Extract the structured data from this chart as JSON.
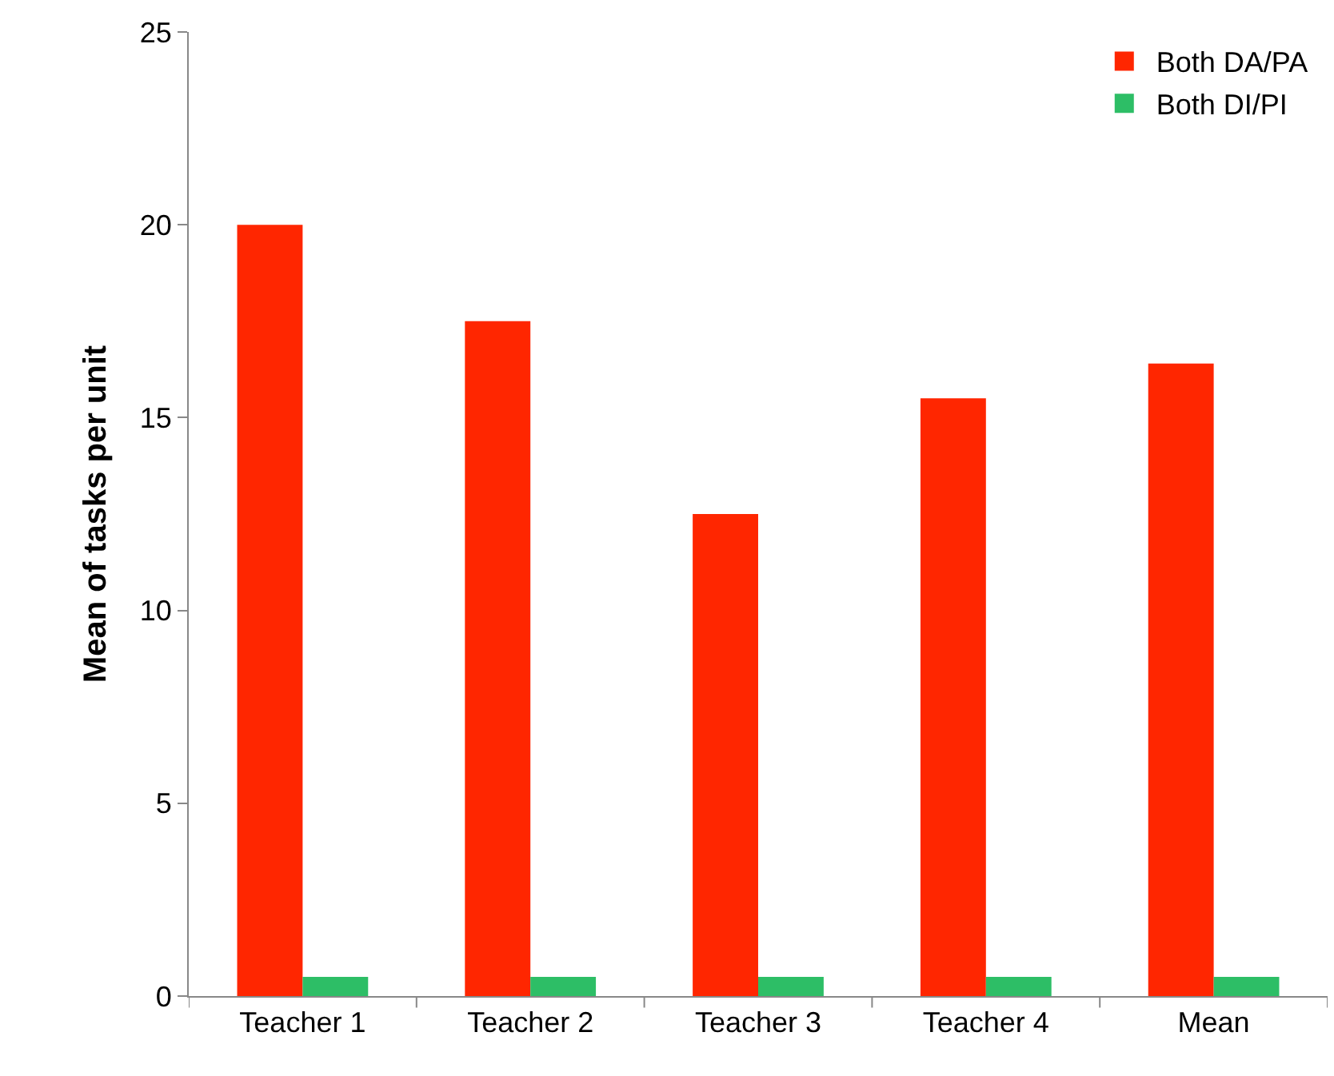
{
  "chart_data": {
    "type": "bar",
    "ylabel": "Mean of tasks per unit",
    "categories": [
      "Teacher 1",
      "Teacher 2",
      "Teacher 3",
      "Teacher 4",
      "Mean"
    ],
    "series": [
      {
        "name": "Both DA/PA",
        "color": "#ff2600",
        "values": [
          20,
          17.5,
          12.5,
          15.5,
          16.4
        ]
      },
      {
        "name": "Both DI/PI",
        "color": "#2dbe66",
        "values": [
          0.5,
          0.5,
          0.5,
          0.5,
          0.5
        ]
      }
    ],
    "ylim": [
      0,
      25
    ],
    "yticks": [
      0,
      5,
      10,
      15,
      20,
      25
    ],
    "legend": "top right"
  }
}
